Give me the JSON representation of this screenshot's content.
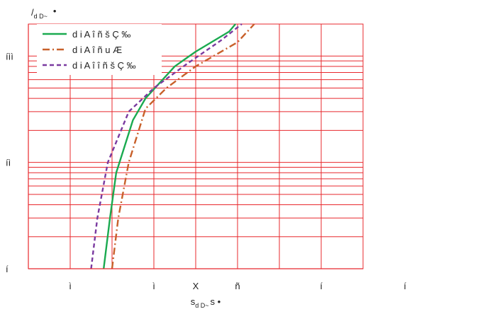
{
  "chart_data": {
    "type": "line",
    "y_scale": "log",
    "grid": true,
    "legend_placement": "top-left",
    "ylabel_main": "/",
    "ylabel_sub": "d D~",
    "ylabel_tail": "•",
    "xlabel_main": "s",
    "xlabel_sub": "d D~",
    "xlabel_tail": "s •",
    "x_tick_labels": [
      {
        "value": 1,
        "label": "ì"
      },
      {
        "value": 3,
        "label": "ì"
      },
      {
        "value": 4,
        "label": "X"
      },
      {
        "value": 5,
        "label": "ñ"
      },
      {
        "value": 7,
        "label": "í"
      },
      {
        "value": 9,
        "label": "í"
      }
    ],
    "y_tick_labels": [
      {
        "value": 1,
        "label": "í"
      },
      {
        "value": 10,
        "label": "íì"
      },
      {
        "value": 100,
        "label": "íìì"
      }
    ],
    "xlim": [
      0,
      8
    ],
    "ylim": [
      1,
      200
    ],
    "series": [
      {
        "name": "d i A î ñ š Ç ‰",
        "color": "#1aaa50",
        "dash": "solid",
        "points": [
          [
            1.8,
            1
          ],
          [
            1.95,
            3
          ],
          [
            2.1,
            8
          ],
          [
            2.5,
            25
          ],
          [
            2.8,
            40
          ],
          [
            3.5,
            80
          ],
          [
            4.0,
            110
          ],
          [
            4.8,
            170
          ],
          [
            4.95,
            200
          ]
        ]
      },
      {
        "name": "d i A î ñ u  Æ",
        "color": "#c8602a",
        "dash": "dashdot",
        "points": [
          [
            2.0,
            1
          ],
          [
            2.15,
            3
          ],
          [
            2.4,
            10
          ],
          [
            2.8,
            32
          ],
          [
            3.3,
            50
          ],
          [
            4.0,
            80
          ],
          [
            5.0,
            135
          ],
          [
            5.4,
            200
          ]
        ]
      },
      {
        "name": "d i A î î ñ š Ç ‰",
        "color": "#7a3aa0",
        "dash": "dashed",
        "points": [
          [
            1.5,
            1
          ],
          [
            1.65,
            3
          ],
          [
            1.9,
            10
          ],
          [
            2.4,
            30
          ],
          [
            3.0,
            50
          ],
          [
            3.8,
            85
          ],
          [
            4.6,
            140
          ],
          [
            5.1,
            200
          ]
        ]
      }
    ]
  }
}
